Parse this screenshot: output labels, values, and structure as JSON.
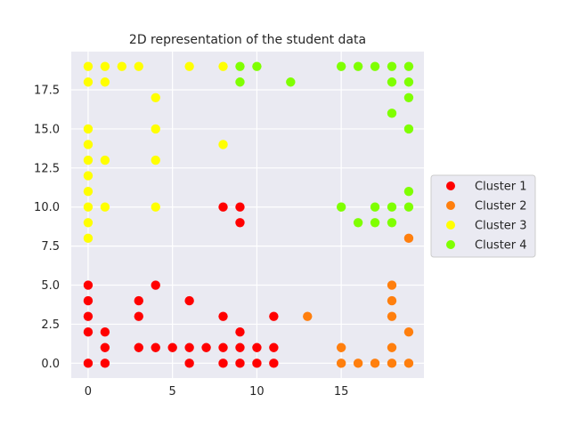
{
  "chart_data": {
    "type": "scatter",
    "title": "2D representation of the student data",
    "xlabel": "",
    "ylabel": "",
    "xlim": [
      -1,
      19.9
    ],
    "ylim": [
      -0.95,
      19.95
    ],
    "xticks": [
      0,
      5,
      10,
      15
    ],
    "yticks": [
      0.0,
      2.5,
      5.0,
      7.5,
      10.0,
      12.5,
      15.0,
      17.5
    ],
    "xtick_labels": [
      "0",
      "5",
      "10",
      "15"
    ],
    "ytick_labels": [
      "0.0",
      "2.5",
      "5.0",
      "7.5",
      "10.0",
      "12.5",
      "15.0",
      "17.5"
    ],
    "grid": true,
    "legend_position": "center-right outside",
    "series": [
      {
        "name": "Cluster 1",
        "color": "#ff0000",
        "points": [
          [
            0,
            0
          ],
          [
            0,
            2
          ],
          [
            0,
            3
          ],
          [
            0,
            4
          ],
          [
            0,
            5
          ],
          [
            1,
            0
          ],
          [
            1,
            1
          ],
          [
            1,
            2
          ],
          [
            3,
            1
          ],
          [
            3,
            3
          ],
          [
            3,
            4
          ],
          [
            4,
            1
          ],
          [
            4,
            5
          ],
          [
            5,
            1
          ],
          [
            6,
            0
          ],
          [
            6,
            1
          ],
          [
            6,
            4
          ],
          [
            7,
            1
          ],
          [
            8,
            0
          ],
          [
            8,
            1
          ],
          [
            8,
            3
          ],
          [
            8,
            10
          ],
          [
            9,
            0
          ],
          [
            9,
            1
          ],
          [
            9,
            2
          ],
          [
            9,
            9
          ],
          [
            9,
            10
          ],
          [
            10,
            0
          ],
          [
            10,
            1
          ],
          [
            11,
            0
          ],
          [
            11,
            1
          ],
          [
            11,
            3
          ]
        ]
      },
      {
        "name": "Cluster 2",
        "color": "#ff7f0e",
        "points": [
          [
            13,
            3
          ],
          [
            15,
            0
          ],
          [
            15,
            1
          ],
          [
            16,
            0
          ],
          [
            17,
            0
          ],
          [
            18,
            0
          ],
          [
            18,
            1
          ],
          [
            18,
            3
          ],
          [
            18,
            4
          ],
          [
            18,
            5
          ],
          [
            19,
            0
          ],
          [
            19,
            2
          ],
          [
            19,
            8
          ]
        ]
      },
      {
        "name": "Cluster 3",
        "color": "#ffff00",
        "points": [
          [
            0,
            8
          ],
          [
            0,
            9
          ],
          [
            0,
            10
          ],
          [
            0,
            11
          ],
          [
            0,
            12
          ],
          [
            0,
            13
          ],
          [
            0,
            14
          ],
          [
            0,
            15
          ],
          [
            0,
            18
          ],
          [
            0,
            19
          ],
          [
            1,
            10
          ],
          [
            1,
            13
          ],
          [
            1,
            18
          ],
          [
            1,
            19
          ],
          [
            2,
            19
          ],
          [
            3,
            19
          ],
          [
            4,
            10
          ],
          [
            4,
            13
          ],
          [
            4,
            15
          ],
          [
            4,
            17
          ],
          [
            6,
            19
          ],
          [
            8,
            14
          ],
          [
            8,
            19
          ]
        ]
      },
      {
        "name": "Cluster 4",
        "color": "#7fff00",
        "points": [
          [
            9,
            18
          ],
          [
            9,
            19
          ],
          [
            10,
            19
          ],
          [
            12,
            18
          ],
          [
            15,
            10
          ],
          [
            15,
            19
          ],
          [
            16,
            9
          ],
          [
            16,
            19
          ],
          [
            17,
            9
          ],
          [
            17,
            10
          ],
          [
            17,
            19
          ],
          [
            18,
            9
          ],
          [
            18,
            10
          ],
          [
            18,
            16
          ],
          [
            18,
            18
          ],
          [
            18,
            19
          ],
          [
            19,
            10
          ],
          [
            19,
            11
          ],
          [
            19,
            15
          ],
          [
            19,
            17
          ],
          [
            19,
            18
          ],
          [
            19,
            19
          ]
        ]
      }
    ]
  }
}
